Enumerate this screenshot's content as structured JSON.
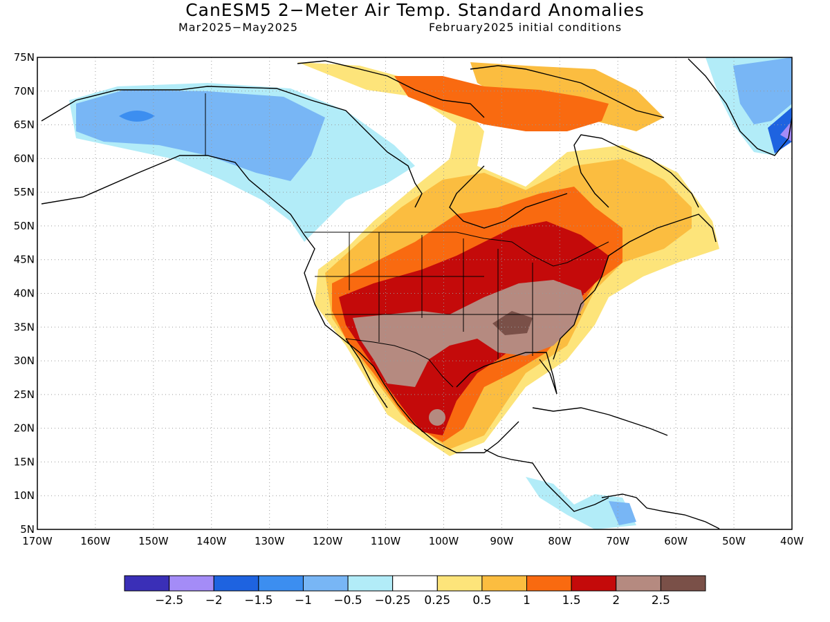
{
  "title": "CanESM5 2−Meter Air Temp. Standard Anomalies",
  "subtitle_left": "Mar2025−May2025",
  "subtitle_right": "February2025 initial conditions",
  "lat_labels": [
    "75N",
    "70N",
    "65N",
    "60N",
    "55N",
    "50N",
    "45N",
    "40N",
    "35N",
    "30N",
    "25N",
    "20N",
    "15N",
    "10N",
    "5N"
  ],
  "lon_labels": [
    "170W",
    "160W",
    "150W",
    "140W",
    "130W",
    "120W",
    "110W",
    "100W",
    "90W",
    "80W",
    "70W",
    "60W",
    "50W",
    "40W"
  ],
  "colorbar": {
    "colors": [
      "#3a2fb7",
      "#a48cf7",
      "#1e63e0",
      "#3c8ef0",
      "#78b6f5",
      "#b2ecf8",
      "#ffffff",
      "#fde47a",
      "#fbbd40",
      "#f96a10",
      "#c40a0a",
      "#b58a80",
      "#7a5048"
    ],
    "labels": [
      "−2.5",
      "−2",
      "−1.5",
      "−1",
      "−0.5",
      "−0.25",
      "0.25",
      "0.5",
      "1",
      "1.5",
      "2",
      "2.5"
    ]
  }
}
